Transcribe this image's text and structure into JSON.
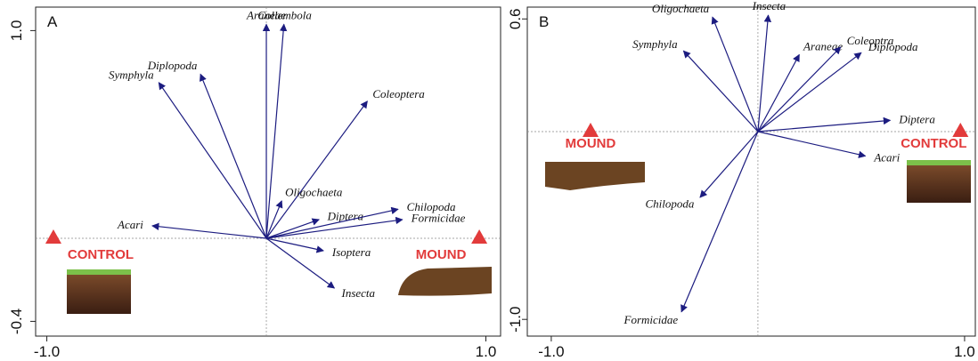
{
  "chart_data": [
    {
      "type": "biplot",
      "panel_label": "A",
      "xlim": [
        -1.051,
        1.067
      ],
      "ylim": [
        -0.471,
        1.113
      ],
      "xticks": [
        {
          "value": -1.0,
          "label": "-1.0"
        },
        {
          "value": 1.0,
          "label": "1.0"
        }
      ],
      "yticks": [
        {
          "value": -0.4,
          "label": "-0.4"
        },
        {
          "value": 1.0,
          "label": "1.0"
        }
      ],
      "vectors": {
        "color": "#1c1c80",
        "names": [
          "Araneae",
          "Collembola",
          "Symphyla",
          "Diplopoda",
          "Coleoptera",
          "Oligochaeta",
          "Diptera",
          "Chilopoda",
          "Formicidae",
          "Isoptera",
          "Insecta",
          "Acari"
        ],
        "x": [
          0.0,
          0.08,
          -0.49,
          -0.3,
          0.46,
          0.07,
          0.24,
          0.6,
          0.62,
          0.26,
          0.31,
          -0.52
        ],
        "y": [
          1.03,
          1.03,
          0.75,
          0.79,
          0.66,
          0.18,
          0.09,
          0.14,
          0.09,
          -0.06,
          -0.24,
          0.06
        ]
      },
      "points": {
        "color": "#e23b3b",
        "names": [
          "CONTROL",
          "MOUND"
        ],
        "x": [
          -0.97,
          0.97
        ],
        "y": [
          0.0,
          0.0
        ]
      }
    },
    {
      "type": "biplot",
      "panel_label": "B",
      "xlim": [
        -1.116,
        1.052
      ],
      "ylim": [
        -1.089,
        0.663
      ],
      "xticks": [
        {
          "value": -1.0,
          "label": "-1.0"
        },
        {
          "value": 1.0,
          "label": "1.0"
        }
      ],
      "yticks": [
        {
          "value": -1.0,
          "label": "-1.0"
        },
        0.6
      ],
      "vectors": {
        "color": "#1c1c80",
        "names": [
          "Oligochaeta",
          "Insecta",
          "Symphyla",
          "Araneae",
          "Coleoptra",
          "Diplopoda",
          "Diptera",
          "Acari",
          "Chilopoda",
          "Formicidae"
        ],
        "x": [
          -0.22,
          0.05,
          -0.36,
          0.2,
          0.4,
          0.5,
          0.64,
          0.52,
          -0.28,
          -0.37
        ],
        "y": [
          0.61,
          0.62,
          0.43,
          0.41,
          0.45,
          0.42,
          0.06,
          -0.13,
          -0.35,
          -0.96
        ]
      },
      "points": {
        "color": "#e23b3b",
        "names": [
          "MOUND",
          "CONTROL"
        ],
        "x": [
          -0.81,
          0.98
        ],
        "y": [
          0.0,
          0.0
        ]
      }
    }
  ]
}
